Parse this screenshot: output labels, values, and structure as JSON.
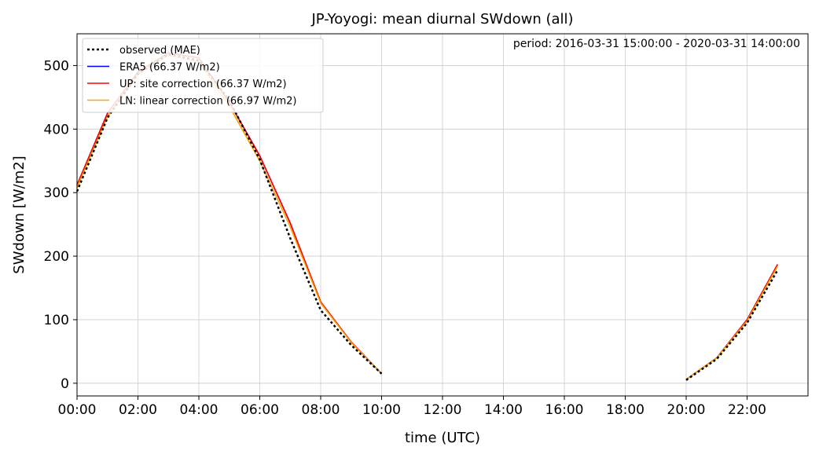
{
  "chart_data": {
    "type": "line",
    "title": "JP-Yoyogi: mean diurnal SWdown (all)",
    "annotation": "period: 2016-03-31 15:00:00 - 2020-03-31 14:00:00",
    "xlabel": "time (UTC)",
    "ylabel": "SWdown [W/m2]",
    "x_unit": "hour",
    "xlim": [
      0,
      24
    ],
    "ylim": [
      -20,
      550
    ],
    "xticks": [
      0,
      2,
      4,
      6,
      8,
      10,
      12,
      14,
      16,
      18,
      20,
      22
    ],
    "xtick_labels": [
      "00:00",
      "02:00",
      "04:00",
      "06:00",
      "08:00",
      "10:00",
      "12:00",
      "14:00",
      "16:00",
      "18:00",
      "20:00",
      "22:00"
    ],
    "yticks": [
      0,
      100,
      200,
      300,
      400,
      500
    ],
    "ytick_labels": [
      "0",
      "100",
      "200",
      "300",
      "400",
      "500"
    ],
    "grid": true,
    "legend_position": "upper-left",
    "x": [
      0,
      1,
      2,
      3,
      4,
      5,
      6,
      7,
      8,
      9,
      10,
      11,
      12,
      13,
      14,
      15,
      16,
      17,
      18,
      19,
      20,
      21,
      22,
      23
    ],
    "series": [
      {
        "name": "observed (MAE)",
        "color": "#000000",
        "style": "dotted",
        "values": [
          302,
          418,
          487,
          518,
          508,
          445,
          352,
          228,
          115,
          60,
          15,
          null,
          null,
          null,
          null,
          null,
          null,
          null,
          null,
          null,
          5,
          38,
          95,
          178
        ]
      },
      {
        "name": "ERA5 (66.37 W/m2)",
        "color": "#0000ff",
        "style": "solid",
        "values": [
          312,
          425,
          490,
          520,
          512,
          442,
          358,
          252,
          128,
          65,
          15,
          null,
          null,
          null,
          null,
          null,
          null,
          null,
          null,
          null,
          6,
          40,
          100,
          187
        ]
      },
      {
        "name": "UP: site correction (66.37 W/m2)",
        "color": "#ff0000",
        "style": "solid",
        "values": [
          312,
          425,
          490,
          520,
          512,
          442,
          358,
          252,
          128,
          65,
          15,
          null,
          null,
          null,
          null,
          null,
          null,
          null,
          null,
          null,
          6,
          40,
          100,
          187
        ]
      },
      {
        "name": "LN: linear correction (66.97 W/m2)",
        "color": "#ffa500",
        "style": "solid",
        "values": [
          308,
          420,
          486,
          516,
          506,
          436,
          350,
          246,
          126,
          64,
          15,
          null,
          null,
          null,
          null,
          null,
          null,
          null,
          null,
          null,
          6,
          40,
          98,
          184
        ]
      }
    ]
  }
}
